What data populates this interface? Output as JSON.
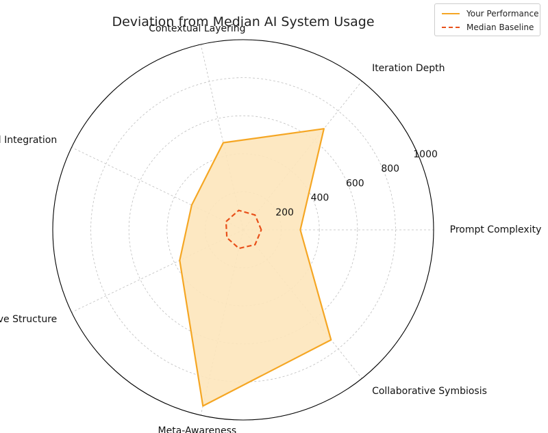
{
  "chart_data": {
    "type": "radar",
    "title": "Deviation from Median AI System Usage",
    "categories": [
      "Prompt Complexity",
      "Iteration Depth",
      "Contextual Layering",
      "Multimodal Integration",
      "Narrative Structure",
      "Meta-Awareness",
      "Collaborative Symbiosis"
    ],
    "series": [
      {
        "name": "Your Performance",
        "values": [
          300,
          680,
          470,
          300,
          370,
          950,
          740
        ],
        "color": "#f5a623",
        "fill": "#fde6bb",
        "line_style": "solid"
      },
      {
        "name": "Median Baseline",
        "values": [
          95,
          100,
          105,
          100,
          95,
          100,
          100
        ],
        "color": "#e8501a",
        "line_style": "dashed"
      }
    ],
    "r_ticks": [
      200,
      400,
      600,
      800,
      1000
    ],
    "rlim": [
      0,
      1000
    ],
    "grid": true,
    "legend_position": "top-right"
  }
}
